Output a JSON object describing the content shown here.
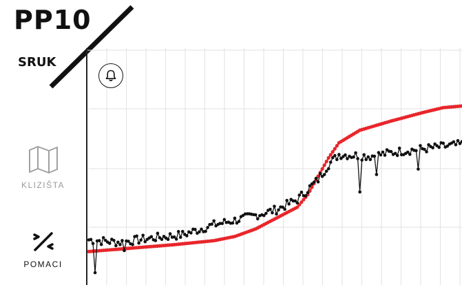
{
  "header": {
    "site_title": "PP10",
    "section_title": "SRUK"
  },
  "sidebar": {
    "items": [
      {
        "label": "KLIZIŠTA",
        "icon": "map-icon",
        "active": false,
        "color": "#9a9a9a"
      },
      {
        "label": "POMACI",
        "icon": "displacement-arrows-icon",
        "active": true,
        "color": "#111111"
      }
    ]
  },
  "toolbar": {
    "alert_icon": "bell-icon"
  },
  "colors": {
    "cumulative_series": "#e8262b",
    "measurement_series": "#111111",
    "grid": "#e2e2e2"
  },
  "chart_data": {
    "type": "line",
    "title": "",
    "xlabel": "",
    "ylabel": "",
    "grid": true,
    "x_count": 180,
    "series": [
      {
        "style": "red-dots",
        "anchors": [
          [
            0,
            0.0
          ],
          [
            20,
            2.0
          ],
          [
            40,
            4.0
          ],
          [
            60,
            6.5
          ],
          [
            70,
            9.0
          ],
          [
            80,
            13.5
          ],
          [
            90,
            20.0
          ],
          [
            100,
            26.5
          ],
          [
            105,
            34.0
          ],
          [
            110,
            45.0
          ],
          [
            115,
            56.0
          ],
          [
            120,
            65.0
          ],
          [
            130,
            72.5
          ],
          [
            145,
            78.0
          ],
          [
            160,
            83.0
          ],
          [
            170,
            86.0
          ],
          [
            179,
            87.0
          ]
        ]
      },
      {
        "style": "black-dots",
        "anchors": [
          [
            0,
            7.0
          ],
          [
            15,
            5.5
          ],
          [
            30,
            8.0
          ],
          [
            45,
            10.0
          ],
          [
            60,
            16.0
          ],
          [
            75,
            20.0
          ],
          [
            90,
            25.0
          ],
          [
            100,
            31.0
          ],
          [
            110,
            43.0
          ],
          [
            115,
            52.0
          ],
          [
            120,
            58.0
          ],
          [
            135,
            57.0
          ],
          [
            150,
            60.0
          ],
          [
            165,
            62.0
          ],
          [
            179,
            64.0
          ]
        ],
        "noise": 2.6,
        "dips": [
          [
            3,
            -18.0
          ],
          [
            130,
            -20.0
          ],
          [
            158,
            -12.0
          ],
          [
            138,
            -9.0
          ],
          [
            17,
            -3.5
          ]
        ]
      }
    ],
    "ylim": [
      -20,
      110
    ]
  }
}
